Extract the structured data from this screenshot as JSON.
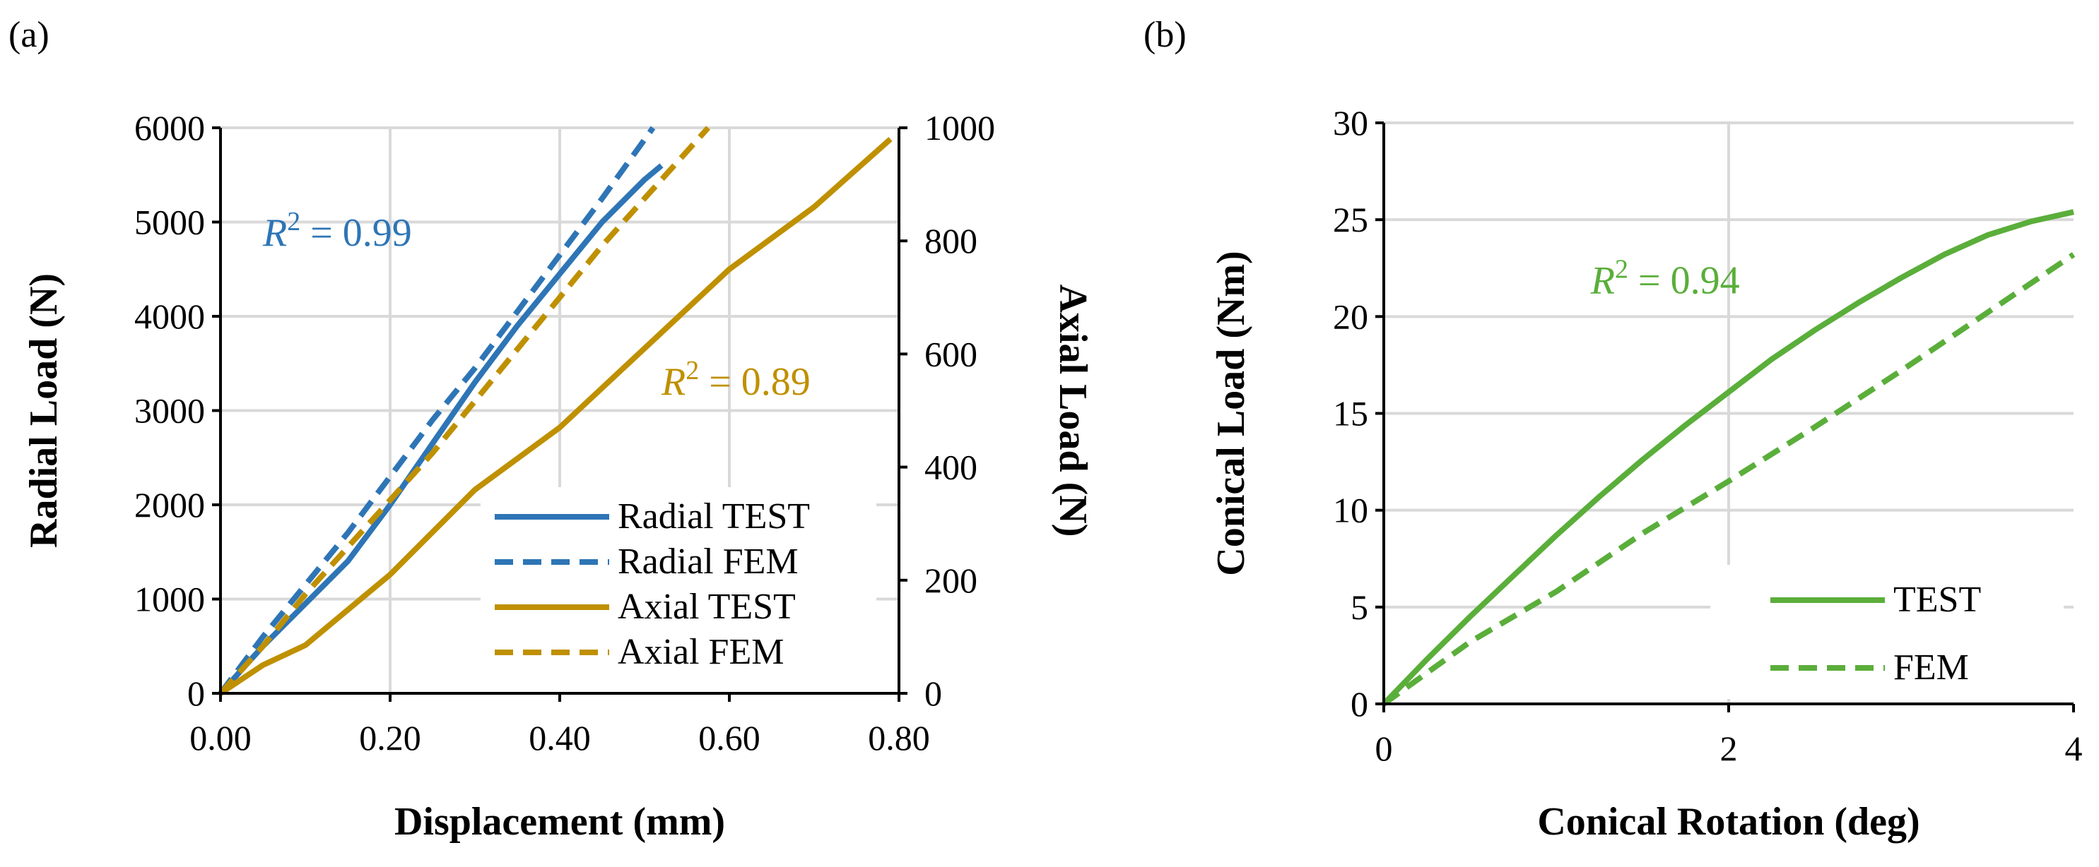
{
  "panel_a_label": "(a)",
  "panel_b_label": "(b)",
  "chart_data": [
    {
      "type": "line",
      "title": "",
      "xlabel": "Displacement (mm)",
      "ylabel": "Radial Load (N)",
      "y2label": "Axial Load (N)",
      "xlim": [
        0,
        0.8
      ],
      "ylim": [
        0,
        6000
      ],
      "y2lim": [
        0,
        1000
      ],
      "xticks": [
        "0.00",
        "0.20",
        "0.40",
        "0.60",
        "0.80"
      ],
      "xtick_values": [
        0,
        0.2,
        0.4,
        0.6,
        0.8
      ],
      "yticks": [
        "0",
        "1000",
        "2000",
        "3000",
        "4000",
        "5000",
        "6000"
      ],
      "ytick_values": [
        0,
        1000,
        2000,
        3000,
        4000,
        5000,
        6000
      ],
      "y2ticks": [
        "0",
        "200",
        "400",
        "600",
        "800",
        "1000"
      ],
      "y2tick_values": [
        0,
        200,
        400,
        600,
        800,
        1000
      ],
      "grid": true,
      "legend_position": "bottom-right",
      "series": [
        {
          "name": "Radial TEST",
          "axis": "left",
          "color": "#2e75b6",
          "dash": "solid",
          "x": [
            0,
            0.02,
            0.05,
            0.1,
            0.15,
            0.2,
            0.25,
            0.3,
            0.35,
            0.4,
            0.45,
            0.5,
            0.52
          ],
          "y": [
            0,
            200,
            500,
            950,
            1400,
            2000,
            2650,
            3300,
            3900,
            4450,
            5000,
            5450,
            5600
          ]
        },
        {
          "name": "Radial FEM",
          "axis": "left",
          "color": "#2e75b6",
          "dash": "dashed",
          "x": [
            0,
            0.05,
            0.1,
            0.15,
            0.2,
            0.25,
            0.3,
            0.35,
            0.4,
            0.45,
            0.51
          ],
          "y": [
            0,
            600,
            1150,
            1700,
            2300,
            2900,
            3450,
            4050,
            4650,
            5250,
            6000
          ]
        },
        {
          "name": "Axial TEST",
          "axis": "right",
          "color": "#bf9000",
          "dash": "solid",
          "x": [
            0,
            0.05,
            0.1,
            0.2,
            0.3,
            0.4,
            0.5,
            0.6,
            0.7,
            0.79
          ],
          "y": [
            0,
            50,
            85,
            210,
            360,
            470,
            610,
            750,
            860,
            980
          ]
        },
        {
          "name": "Axial FEM",
          "axis": "left",
          "color": "#bf9000",
          "dash": "dashed",
          "x": [
            0,
            0.05,
            0.1,
            0.15,
            0.2,
            0.25,
            0.3,
            0.35,
            0.4,
            0.45,
            0.5,
            0.55,
            0.575
          ],
          "y": [
            0,
            500,
            1050,
            1550,
            2050,
            2550,
            3100,
            3650,
            4200,
            4750,
            5250,
            5750,
            6000
          ]
        }
      ],
      "annotations": [
        {
          "text": "R² = 0.99",
          "color": "#2e75b6",
          "x": 0.05,
          "y": 4750
        },
        {
          "text": "R² = 0.89",
          "color": "#bf9000",
          "x": 0.52,
          "y": 3170
        }
      ]
    },
    {
      "type": "line",
      "title": "",
      "xlabel": "Conical Rotation (deg)",
      "ylabel": "Conical Load (Nm)",
      "xlim": [
        0,
        4
      ],
      "ylim": [
        0,
        30
      ],
      "xticks": [
        "0",
        "2",
        "4"
      ],
      "xtick_values": [
        0,
        2,
        4
      ],
      "yticks": [
        "0",
        "5",
        "10",
        "15",
        "20",
        "25",
        "30"
      ],
      "ytick_values": [
        0,
        5,
        10,
        15,
        20,
        25,
        30
      ],
      "grid": true,
      "legend_position": "bottom-right",
      "series": [
        {
          "name": "TEST",
          "color": "#5aae3a",
          "dash": "solid",
          "x": [
            0,
            0.25,
            0.5,
            0.75,
            1.0,
            1.25,
            1.5,
            1.75,
            2.0,
            2.25,
            2.5,
            2.75,
            3.0,
            3.25,
            3.5,
            3.75,
            4.0
          ],
          "y": [
            0,
            2.3,
            4.5,
            6.6,
            8.7,
            10.7,
            12.6,
            14.4,
            16.1,
            17.8,
            19.3,
            20.7,
            22.0,
            23.2,
            24.2,
            24.9,
            25.4
          ]
        },
        {
          "name": "FEM",
          "color": "#5aae3a",
          "dash": "dashed",
          "x": [
            0,
            0.5,
            1.0,
            1.5,
            2.0,
            2.5,
            3.0,
            3.5,
            4.0
          ],
          "y": [
            0,
            3.2,
            5.8,
            8.8,
            11.5,
            14.3,
            17.2,
            20.2,
            23.2
          ]
        }
      ],
      "annotations": [
        {
          "text": "R² = 0.94",
          "color": "#5aae3a",
          "x": 1.2,
          "y": 21.2
        }
      ]
    }
  ]
}
